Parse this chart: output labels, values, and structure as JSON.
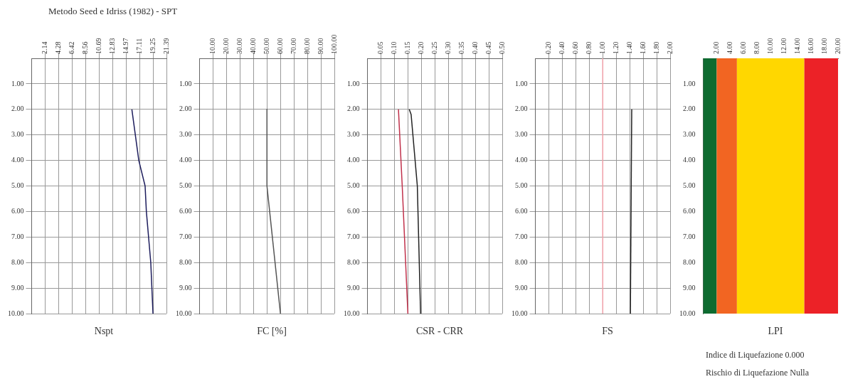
{
  "chart_data": [
    {
      "type": "line",
      "title": "Metodo Seed e Idriss (1982) - SPT",
      "xlabel": "Nspt",
      "xlim": [
        0,
        21.39
      ],
      "xticks": [
        2.14,
        4.28,
        6.42,
        8.56,
        10.69,
        12.83,
        14.97,
        17.11,
        19.25,
        21.39
      ],
      "ylim": [
        10,
        0
      ],
      "yticks": [
        {
          "value": 1,
          "label": "1.00"
        },
        {
          "value": 2,
          "label": "2.00"
        },
        {
          "value": 3,
          "label": "3.00"
        },
        {
          "value": 4,
          "label": "4.00"
        },
        {
          "value": 5,
          "label": "5.00"
        },
        {
          "value": 6,
          "label": "6.00"
        },
        {
          "value": 7,
          "label": "7.00"
        },
        {
          "value": 8,
          "label": "8.00"
        },
        {
          "value": 9,
          "label": "9.00"
        },
        {
          "value": 10,
          "label": "10.00"
        }
      ],
      "grid": true,
      "series": [
        {
          "color": "#1c1c5c",
          "x": [
            15.9,
            17.0,
            18.0,
            18.2,
            18.9,
            19.25
          ],
          "values": [
            2,
            4,
            5,
            6,
            8,
            10
          ]
        }
      ]
    },
    {
      "type": "line",
      "xlabel": "FC [%]",
      "xlim": [
        0,
        100
      ],
      "xticks": [
        {
          "value": 10,
          "label": "10.00"
        },
        {
          "value": 20,
          "label": "20.00"
        },
        {
          "value": 30,
          "label": "30.00"
        },
        {
          "value": 40,
          "label": "40.00"
        },
        {
          "value": 50,
          "label": "50.00"
        },
        {
          "value": 60,
          "label": "60.00"
        },
        {
          "value": 70,
          "label": "70.00"
        },
        {
          "value": 80,
          "label": "80.00"
        },
        {
          "value": 90,
          "label": "90.00"
        },
        {
          "value": 100,
          "label": "100.00"
        }
      ],
      "ylim": [
        10,
        0
      ],
      "yticks": [
        {
          "value": 1,
          "label": "1.00"
        },
        {
          "value": 2,
          "label": "2.00"
        },
        {
          "value": 3,
          "label": "3.00"
        },
        {
          "value": 4,
          "label": "4.00"
        },
        {
          "value": 5,
          "label": "5.00"
        },
        {
          "value": 6,
          "label": "6.00"
        },
        {
          "value": 7,
          "label": "7.00"
        },
        {
          "value": 8,
          "label": "8.00"
        },
        {
          "value": 9,
          "label": "9.00"
        },
        {
          "value": 10,
          "label": "10.00"
        }
      ],
      "grid": true,
      "series": [
        {
          "color": "#555555",
          "x": [
            50,
            50,
            52,
            60
          ],
          "values": [
            2,
            5,
            6,
            10
          ]
        }
      ]
    },
    {
      "type": "line",
      "xlabel": "CSR - CRR",
      "xlim": [
        0,
        0.5
      ],
      "xticks": [
        {
          "value": 0.05,
          "label": "0.05"
        },
        {
          "value": 0.1,
          "label": "0.10"
        },
        {
          "value": 0.15,
          "label": "0.15"
        },
        {
          "value": 0.2,
          "label": "0.20"
        },
        {
          "value": 0.25,
          "label": "0.25"
        },
        {
          "value": 0.3,
          "label": "0.30"
        },
        {
          "value": 0.35,
          "label": "0.35"
        },
        {
          "value": 0.4,
          "label": "0.40"
        },
        {
          "value": 0.45,
          "label": "0.45"
        },
        {
          "value": 0.5,
          "label": "0.50"
        }
      ],
      "ylim": [
        10,
        0
      ],
      "yticks": [
        {
          "value": 1,
          "label": "1.00"
        },
        {
          "value": 2,
          "label": "2.00"
        },
        {
          "value": 3,
          "label": "3.00"
        },
        {
          "value": 4,
          "label": "4.00"
        },
        {
          "value": 5,
          "label": "5.00"
        },
        {
          "value": 6,
          "label": "6.00"
        },
        {
          "value": 7,
          "label": "7.00"
        },
        {
          "value": 8,
          "label": "8.00"
        },
        {
          "value": 9,
          "label": "9.00"
        },
        {
          "value": 10,
          "label": "10.00"
        }
      ],
      "grid": true,
      "series": [
        {
          "color": "#c0304a",
          "x": [
            0.115,
            0.129,
            0.15
          ],
          "values": [
            2,
            5,
            10
          ]
        },
        {
          "color": "#222222",
          "x": [
            0.155,
            0.162,
            0.185,
            0.197
          ],
          "values": [
            2,
            2.2,
            5,
            10
          ]
        }
      ]
    },
    {
      "type": "line",
      "xlabel": "FS",
      "xlim": [
        0,
        2
      ],
      "xticks": [
        {
          "value": 0.2,
          "label": "0.20"
        },
        {
          "value": 0.4,
          "label": "0.40"
        },
        {
          "value": 0.6,
          "label": "0.60"
        },
        {
          "value": 0.8,
          "label": "0.80"
        },
        {
          "value": 1,
          "label": "1.00"
        },
        {
          "value": 1.2,
          "label": "1.20"
        },
        {
          "value": 1.4,
          "label": "1.40"
        },
        {
          "value": 1.6,
          "label": "1.60"
        },
        {
          "value": 1.8,
          "label": "1.80"
        },
        {
          "value": 2,
          "label": "2.00"
        }
      ],
      "ylim": [
        10,
        0
      ],
      "yticks": [
        {
          "value": 1,
          "label": "1.00"
        },
        {
          "value": 2,
          "label": "2.00"
        },
        {
          "value": 3,
          "label": "3.00"
        },
        {
          "value": 4,
          "label": "4.00"
        },
        {
          "value": 5,
          "label": "5.00"
        },
        {
          "value": 6,
          "label": "6.00"
        },
        {
          "value": 7,
          "label": "7.00"
        },
        {
          "value": 8,
          "label": "8.00"
        },
        {
          "value": 9,
          "label": "9.00"
        },
        {
          "value": 10,
          "label": "10.00"
        }
      ],
      "grid": true,
      "ref_lines": [
        {
          "axis": "x",
          "value": 1,
          "color": "#f0a0a8"
        }
      ],
      "series": [
        {
          "color": "#222222",
          "x": [
            1.43,
            1.41
          ],
          "values": [
            2,
            10
          ]
        }
      ]
    },
    {
      "type": "line",
      "xlabel": "LPI",
      "xlim": [
        0,
        20
      ],
      "xticks": [
        {
          "value": 2,
          "label": "2.00"
        },
        {
          "value": 4,
          "label": "4.00"
        },
        {
          "value": 6,
          "label": "6.00"
        },
        {
          "value": 8,
          "label": "8.00"
        },
        {
          "value": 10,
          "label": "10.00"
        },
        {
          "value": 12,
          "label": "12.00"
        },
        {
          "value": 14,
          "label": "14.00"
        },
        {
          "value": 16,
          "label": "16.00"
        },
        {
          "value": 18,
          "label": "18.00"
        },
        {
          "value": 20,
          "label": "20.00"
        }
      ],
      "ylim": [
        10,
        0
      ],
      "yticks": [
        {
          "value": 1,
          "label": "1.00"
        },
        {
          "value": 2,
          "label": "2.00"
        },
        {
          "value": 3,
          "label": "3.00"
        },
        {
          "value": 4,
          "label": "4.00"
        },
        {
          "value": 5,
          "label": "5.00"
        },
        {
          "value": 6,
          "label": "6.00"
        },
        {
          "value": 7,
          "label": "7.00"
        },
        {
          "value": 8,
          "label": "8.00"
        },
        {
          "value": 9,
          "label": "9.00"
        },
        {
          "value": 10,
          "label": "10.00"
        }
      ],
      "grid": false,
      "bands": [
        {
          "axis": "x",
          "from": 0,
          "to": 2,
          "color": "#0e6b30"
        },
        {
          "axis": "x",
          "from": 2,
          "to": 5,
          "color": "#f26522"
        },
        {
          "axis": "x",
          "from": 5,
          "to": 15,
          "color": "#ffd700"
        },
        {
          "axis": "x",
          "from": 15,
          "to": 20,
          "color": "#ec2227"
        }
      ],
      "annotations": [
        "Indice di Liquefazione 0.000",
        "Rischio di Liquefazione Nulla"
      ]
    }
  ]
}
